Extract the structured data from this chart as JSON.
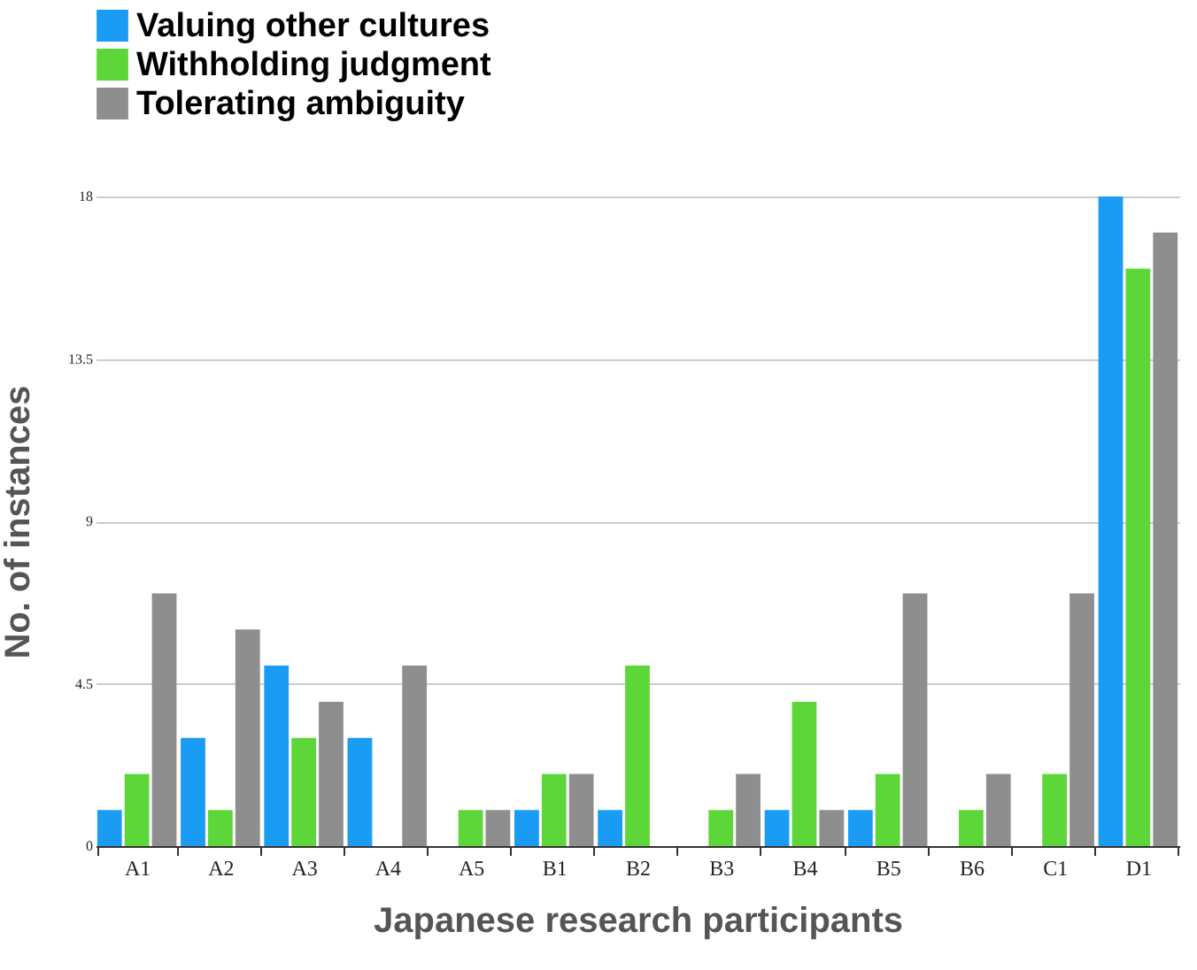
{
  "chart_data": {
    "type": "bar",
    "xlabel": "Japanese research participants",
    "ylabel": "No. of instances",
    "categories": [
      "A1",
      "A2",
      "A3",
      "A4",
      "A5",
      "B1",
      "B2",
      "B3",
      "B4",
      "B5",
      "B6",
      "C1",
      "D1"
    ],
    "series": [
      {
        "name": "Valuing other cultures",
        "color": "#1a9cf5",
        "values": [
          1,
          3,
          5,
          3,
          0,
          1,
          1,
          0,
          1,
          1,
          0,
          0,
          18
        ]
      },
      {
        "name": "Withholding judgment",
        "color": "#5cd639",
        "values": [
          2,
          1,
          3,
          0,
          1,
          2,
          5,
          1,
          4,
          2,
          1,
          2,
          16
        ]
      },
      {
        "name": "Tolerating ambiguity",
        "color": "#8e8e8e",
        "values": [
          7,
          6,
          4,
          5,
          1,
          2,
          0,
          2,
          1,
          7,
          2,
          7,
          17
        ]
      }
    ],
    "ylim": [
      0,
      18
    ],
    "yticks": [
      0,
      4.5,
      9,
      13.5,
      18
    ],
    "grid": "y",
    "legend": "top left"
  }
}
